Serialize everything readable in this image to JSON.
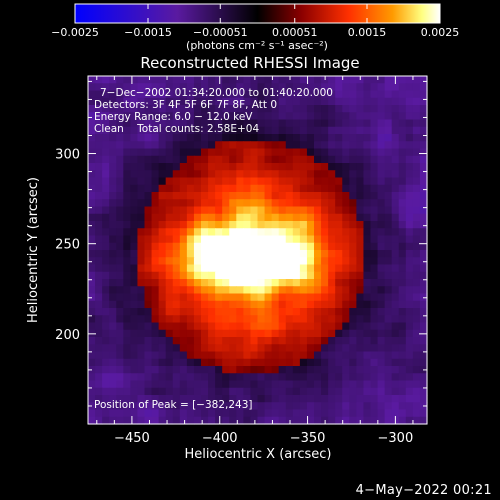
{
  "chart_data": {
    "type": "heatmap",
    "title": "Reconstructed RHESSI Image",
    "xlabel": "Heliocentric X (arcsec)",
    "ylabel": "Heliocentric Y (arcsec)",
    "xlim": [
      -475,
      -282
    ],
    "ylim": [
      150,
      343
    ],
    "x_ticks": [
      -450,
      -400,
      -350,
      -300
    ],
    "x_tick_labels": [
      "−450",
      "−400",
      "−350",
      "−300"
    ],
    "y_ticks": [
      200,
      250,
      300
    ],
    "y_tick_labels": [
      "200",
      "250",
      "300"
    ],
    "colorbar": {
      "range": [
        -0.0025,
        0.0025
      ],
      "ticks": [
        -0.0025,
        -0.0015,
        -0.00051,
        0.00051,
        0.0015,
        0.0025
      ],
      "tick_labels": [
        "−0.0025",
        "−0.0015",
        "−0.00051",
        "0.00051",
        "0.0015",
        "0.0025"
      ],
      "unit": "(photons cm⁻² s⁻¹ asec⁻²)",
      "colormap": [
        "#0000ff",
        "#5a1aa0",
        "#000000",
        "#8b0000",
        "#ff3000",
        "#ff9a00",
        "#ffff80",
        "#ffffff"
      ]
    },
    "annotations": [
      "7−Dec−2002 01:34:20.000 to 01:40:20.000",
      "Detectors: 3F 4F 5F 6F 7F 8F, Att 0",
      "Energy Range: 6.0 − 12.0 keV",
      "Clean    Total counts: 2.58E+04"
    ],
    "peak_label": "Position of Peak = [−382,243]",
    "peak": [
      -382,
      243
    ]
  },
  "footer_date": "4−May−2022 00:21"
}
